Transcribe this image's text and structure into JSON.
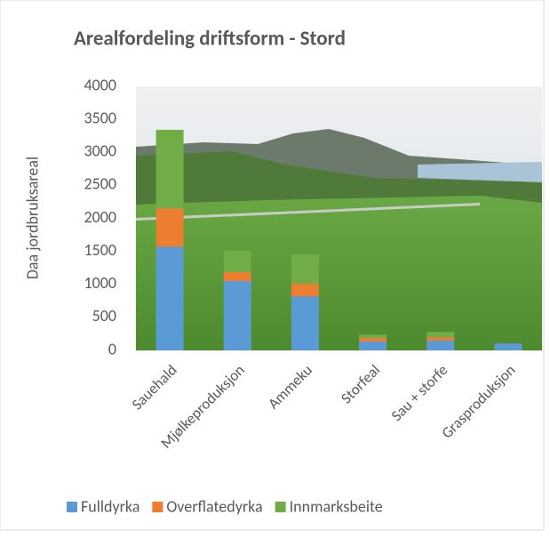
{
  "chart_data": {
    "type": "stacked_bar",
    "title": "Arealfordeling driftsform - Stord",
    "y_label": "Daa jordbruksareal",
    "categories": [
      "Sauehald",
      "Mjølkeproduksjon",
      "Ammeku",
      "Storfeal",
      "Sau + storfe",
      "Grasproduksjon"
    ],
    "series": [
      {
        "name": "Fulldyrka",
        "color": "#5b9bd5",
        "values": [
          1570,
          1050,
          820,
          135,
          150,
          105
        ]
      },
      {
        "name": "Overflatedyrka",
        "color": "#ed7d31",
        "values": [
          580,
          135,
          190,
          55,
          50,
          0
        ]
      },
      {
        "name": "Innmarksbeite",
        "color": "#70ad47",
        "values": [
          1190,
          325,
          445,
          50,
          80,
          0
        ]
      }
    ],
    "ylim": [
      0,
      4000
    ],
    "yticks": [
      0,
      500,
      1000,
      1500,
      2000,
      2500,
      3000,
      3500,
      4000
    ],
    "legend": "bottom"
  }
}
